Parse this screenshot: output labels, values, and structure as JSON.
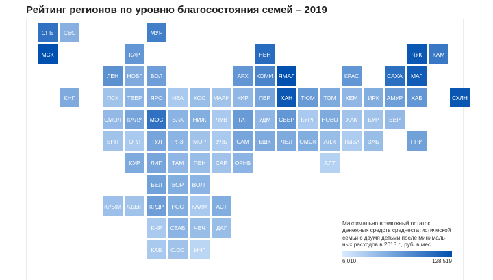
{
  "title": "Рейтинг регионов по уровню благосостояния семей – 2019",
  "legend": {
    "description": "Максимально возможный остаток денежных средств среднестатистической семьи с двумя детьми после минималь-ных расходов в 2018 г., руб. в мес.",
    "min_label": "6 010",
    "max_label": "128 519",
    "min_value": 6010,
    "max_value": 128519,
    "color_low": "#d9ebff",
    "color_high": "#0050b0"
  },
  "regions": [
    {
      "code": "СПБ",
      "row": 0,
      "col": 0,
      "value": 0.78
    },
    {
      "code": "СВС",
      "row": 0,
      "col": 1,
      "value": 0.38
    },
    {
      "code": "МУР",
      "row": 0,
      "col": 5,
      "value": 0.7
    },
    {
      "code": "МСК",
      "row": 1,
      "col": 0,
      "value": 1.0
    },
    {
      "code": "КАР",
      "row": 1,
      "col": 4,
      "value": 0.55
    },
    {
      "code": "НЕН",
      "row": 1,
      "col": 10,
      "value": 0.82
    },
    {
      "code": "ЧУК",
      "row": 1,
      "col": 17,
      "value": 0.95
    },
    {
      "code": "КАМ",
      "row": 1,
      "col": 18,
      "value": 0.74
    },
    {
      "code": "ЛЕН",
      "row": 2,
      "col": 3,
      "value": 0.58
    },
    {
      "code": "НОВГ",
      "row": 2,
      "col": 4,
      "value": 0.42
    },
    {
      "code": "ВОЛ",
      "row": 2,
      "col": 5,
      "value": 0.5
    },
    {
      "code": "АРХ",
      "row": 2,
      "col": 9,
      "value": 0.55
    },
    {
      "code": "КОМИ",
      "row": 2,
      "col": 10,
      "value": 0.66
    },
    {
      "code": "ЯМАЛ",
      "row": 2,
      "col": 11,
      "value": 1.0
    },
    {
      "code": "КРАС",
      "row": 2,
      "col": 14,
      "value": 0.55
    },
    {
      "code": "САХА",
      "row": 2,
      "col": 16,
      "value": 0.8
    },
    {
      "code": "МАГ",
      "row": 2,
      "col": 17,
      "value": 0.92
    },
    {
      "code": "КНГ",
      "row": 3,
      "col": 1,
      "value": 0.42
    },
    {
      "code": "ПСК",
      "row": 3,
      "col": 3,
      "value": 0.26
    },
    {
      "code": "ТВЕР",
      "row": 3,
      "col": 4,
      "value": 0.36
    },
    {
      "code": "ЯРО",
      "row": 3,
      "col": 5,
      "value": 0.42
    },
    {
      "code": "ИВА",
      "row": 3,
      "col": 6,
      "value": 0.22
    },
    {
      "code": "КОС",
      "row": 3,
      "col": 7,
      "value": 0.3
    },
    {
      "code": "МАРИ",
      "row": 3,
      "col": 8,
      "value": 0.26
    },
    {
      "code": "КИР",
      "row": 3,
      "col": 9,
      "value": 0.34
    },
    {
      "code": "ПЕР",
      "row": 3,
      "col": 10,
      "value": 0.45
    },
    {
      "code": "ХАН",
      "row": 3,
      "col": 11,
      "value": 0.95
    },
    {
      "code": "ТЮМ",
      "row": 3,
      "col": 12,
      "value": 0.52
    },
    {
      "code": "ТОМ",
      "row": 3,
      "col": 13,
      "value": 0.42
    },
    {
      "code": "КЕМ",
      "row": 3,
      "col": 14,
      "value": 0.34
    },
    {
      "code": "ИРК",
      "row": 3,
      "col": 15,
      "value": 0.4
    },
    {
      "code": "АМУР",
      "row": 3,
      "col": 16,
      "value": 0.5
    },
    {
      "code": "ХАБ",
      "row": 3,
      "col": 17,
      "value": 0.55
    },
    {
      "code": "СХЛН",
      "row": 3,
      "col": 19,
      "value": 0.96
    },
    {
      "code": "СМОЛ",
      "row": 4,
      "col": 3,
      "value": 0.32
    },
    {
      "code": "КАЛУ",
      "row": 4,
      "col": 4,
      "value": 0.45
    },
    {
      "code": "МОС",
      "row": 4,
      "col": 5,
      "value": 0.78
    },
    {
      "code": "ВЛА",
      "row": 4,
      "col": 6,
      "value": 0.36
    },
    {
      "code": "НИЖ",
      "row": 4,
      "col": 7,
      "value": 0.4
    },
    {
      "code": "ЧУВ",
      "row": 4,
      "col": 8,
      "value": 0.22
    },
    {
      "code": "ТАТ",
      "row": 4,
      "col": 9,
      "value": 0.52
    },
    {
      "code": "УДМ",
      "row": 4,
      "col": 10,
      "value": 0.34
    },
    {
      "code": "СВЕР",
      "row": 4,
      "col": 11,
      "value": 0.55
    },
    {
      "code": "КУРГ",
      "row": 4,
      "col": 12,
      "value": 0.22
    },
    {
      "code": "НОВО",
      "row": 4,
      "col": 13,
      "value": 0.42
    },
    {
      "code": "ХАК",
      "row": 4,
      "col": 14,
      "value": 0.26
    },
    {
      "code": "БУР",
      "row": 4,
      "col": 15,
      "value": 0.26
    },
    {
      "code": "ЕВР",
      "row": 4,
      "col": 16,
      "value": 0.32
    },
    {
      "code": "БРЯ",
      "row": 5,
      "col": 3,
      "value": 0.26
    },
    {
      "code": "ОРЛ",
      "row": 5,
      "col": 4,
      "value": 0.22
    },
    {
      "code": "ТУЛ",
      "row": 5,
      "col": 5,
      "value": 0.45
    },
    {
      "code": "РЯЗ",
      "row": 5,
      "col": 6,
      "value": 0.36
    },
    {
      "code": "МОР",
      "row": 5,
      "col": 7,
      "value": 0.26
    },
    {
      "code": "УЛЬ",
      "row": 5,
      "col": 8,
      "value": 0.22
    },
    {
      "code": "САМ",
      "row": 5,
      "col": 9,
      "value": 0.45
    },
    {
      "code": "БШК",
      "row": 5,
      "col": 10,
      "value": 0.42
    },
    {
      "code": "ЧЕЛ",
      "row": 5,
      "col": 11,
      "value": 0.42
    },
    {
      "code": "ОМСК",
      "row": 5,
      "col": 12,
      "value": 0.4
    },
    {
      "code": "АЛ.К",
      "row": 5,
      "col": 13,
      "value": 0.3
    },
    {
      "code": "ТЫВА",
      "row": 5,
      "col": 14,
      "value": 0.2
    },
    {
      "code": "ЗАБ",
      "row": 5,
      "col": 15,
      "value": 0.3
    },
    {
      "code": "ПРИ",
      "row": 5,
      "col": 17,
      "value": 0.48
    },
    {
      "code": "КУР",
      "row": 6,
      "col": 4,
      "value": 0.42
    },
    {
      "code": "ЛИП",
      "row": 6,
      "col": 5,
      "value": 0.45
    },
    {
      "code": "ТАМ",
      "row": 6,
      "col": 6,
      "value": 0.34
    },
    {
      "code": "ПЕН",
      "row": 6,
      "col": 7,
      "value": 0.3
    },
    {
      "code": "САР",
      "row": 6,
      "col": 8,
      "value": 0.26
    },
    {
      "code": "ОРНБ",
      "row": 6,
      "col": 9,
      "value": 0.36
    },
    {
      "code": "АЛТ",
      "row": 6,
      "col": 13,
      "value": 0.16
    },
    {
      "code": "БЕЛ",
      "row": 7,
      "col": 5,
      "value": 0.48
    },
    {
      "code": "ВОР",
      "row": 7,
      "col": 6,
      "value": 0.4
    },
    {
      "code": "ВОЛГ",
      "row": 7,
      "col": 7,
      "value": 0.36
    },
    {
      "code": "КРЫМ",
      "row": 8,
      "col": 3,
      "value": 0.28
    },
    {
      "code": "АДЫГ",
      "row": 8,
      "col": 4,
      "value": 0.26
    },
    {
      "code": "КРДР",
      "row": 8,
      "col": 5,
      "value": 0.5
    },
    {
      "code": "РОС",
      "row": 8,
      "col": 6,
      "value": 0.4
    },
    {
      "code": "КАЛМ",
      "row": 8,
      "col": 7,
      "value": 0.22
    },
    {
      "code": "АСТ",
      "row": 8,
      "col": 8,
      "value": 0.4
    },
    {
      "code": "КЧР",
      "row": 9,
      "col": 5,
      "value": 0.22
    },
    {
      "code": "СТАВ",
      "row": 9,
      "col": 6,
      "value": 0.36
    },
    {
      "code": "ЧЕЧ",
      "row": 9,
      "col": 7,
      "value": 0.3
    },
    {
      "code": "ДАГ",
      "row": 9,
      "col": 8,
      "value": 0.3
    },
    {
      "code": "КАБ",
      "row": 10,
      "col": 5,
      "value": 0.22
    },
    {
      "code": "С.ОС",
      "row": 10,
      "col": 6,
      "value": 0.26
    },
    {
      "code": "ИНГ",
      "row": 10,
      "col": 7,
      "value": 0.14
    }
  ]
}
